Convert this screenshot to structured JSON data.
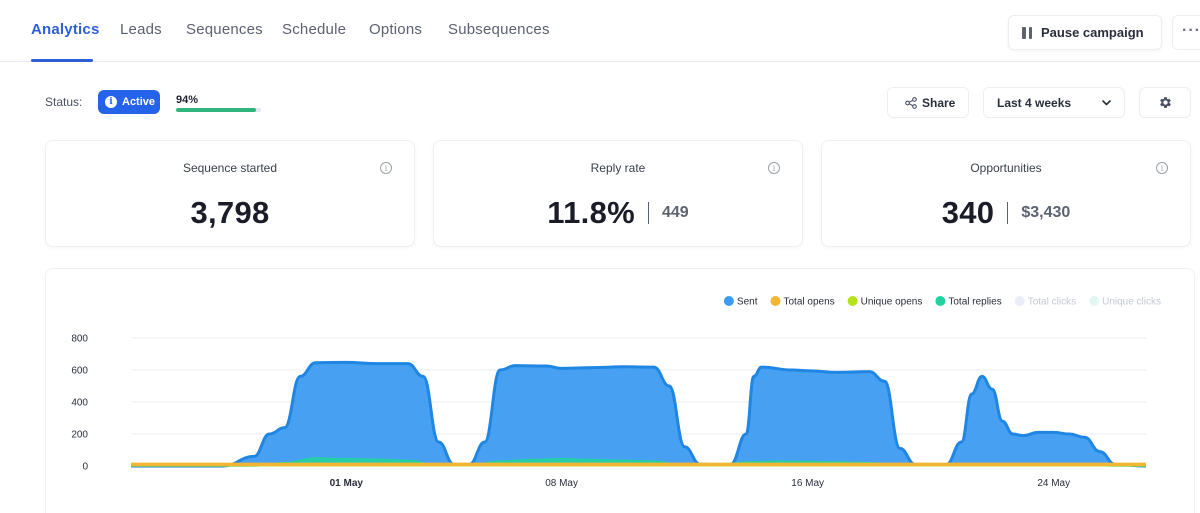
{
  "nav": {
    "tabs": [
      {
        "label": "Analytics"
      },
      {
        "label": "Leads"
      },
      {
        "label": "Sequences"
      },
      {
        "label": "Schedule"
      },
      {
        "label": "Options"
      },
      {
        "label": "Subsequences"
      }
    ],
    "active_tab": "Analytics",
    "pause_label": "Pause campaign",
    "more_label": "···"
  },
  "status": {
    "label": "Status:",
    "badge": "Active",
    "progress_label": "94%",
    "progress_value": 0.94,
    "progress_color": "#30b57c"
  },
  "toolbar": {
    "share_label": "Share",
    "range_value": "Last 4 weeks"
  },
  "cards": [
    {
      "title": "Sequence started",
      "value": "3,798",
      "sub": ""
    },
    {
      "title": "Reply rate",
      "value": "11.8%",
      "sub": "449"
    },
    {
      "title": "Opportunities",
      "value": "340",
      "sub": "$3,430"
    }
  ],
  "icons": {
    "pause": "pause-icon",
    "more": "ellipsis-icon",
    "info": "info-icon",
    "share": "share-icon",
    "chevron": "chevron-down-icon",
    "gear": "gear-icon"
  },
  "colors": {
    "accent": "#2c5fd9",
    "badge": "#2563eb"
  },
  "chart_data": {
    "type": "area",
    "title": "",
    "xlabel": "",
    "ylabel": "",
    "ylim": [
      0,
      800
    ],
    "yticks": [
      0,
      200,
      400,
      600,
      800
    ],
    "xlim": [
      "2025-04-24",
      "2025-05-27"
    ],
    "xticks": [
      {
        "label": "01 May",
        "date": "2025-05-01",
        "bold": true
      },
      {
        "label": "08 May",
        "date": "2025-05-08",
        "bold": false
      },
      {
        "label": "16 May",
        "date": "2025-05-16",
        "bold": false
      },
      {
        "label": "24 May",
        "date": "2025-05-24",
        "bold": false
      }
    ],
    "grid": true,
    "legend_position": "top-right",
    "series": [
      {
        "name": "Sent",
        "color": "#3d9bf0",
        "visible": true,
        "points": [
          [
            "2025-04-24",
            0
          ],
          [
            "2025-04-27",
            0
          ],
          [
            "2025-04-28",
            60
          ],
          [
            "2025-04-28 12:00",
            200
          ],
          [
            "2025-04-29",
            240
          ],
          [
            "2025-04-29 12:00",
            560
          ],
          [
            "2025-04-30",
            645
          ],
          [
            "2025-05-01",
            648
          ],
          [
            "2025-05-02",
            640
          ],
          [
            "2025-05-03",
            640
          ],
          [
            "2025-05-03 12:00",
            560
          ],
          [
            "2025-05-04",
            150
          ],
          [
            "2025-05-04 12:00",
            10
          ],
          [
            "2025-05-05",
            10
          ],
          [
            "2025-05-05 12:00",
            150
          ],
          [
            "2025-05-06",
            600
          ],
          [
            "2025-05-06 12:00",
            627
          ],
          [
            "2025-05-07 12:00",
            625
          ],
          [
            "2025-05-08",
            610
          ],
          [
            "2025-05-09",
            615
          ],
          [
            "2025-05-10",
            620
          ],
          [
            "2025-05-11",
            618
          ],
          [
            "2025-05-11 12:00",
            500
          ],
          [
            "2025-05-12",
            120
          ],
          [
            "2025-05-12 12:00",
            12
          ],
          [
            "2025-05-13",
            8
          ],
          [
            "2025-05-13 12:00",
            10
          ],
          [
            "2025-05-14",
            200
          ],
          [
            "2025-05-14 06:00",
            560
          ],
          [
            "2025-05-14 12:00",
            618
          ],
          [
            "2025-05-15 12:00",
            600
          ],
          [
            "2025-05-16",
            595
          ],
          [
            "2025-05-17",
            585
          ],
          [
            "2025-05-18",
            590
          ],
          [
            "2025-05-18 12:00",
            530
          ],
          [
            "2025-05-19",
            110
          ],
          [
            "2025-05-19 12:00",
            10
          ],
          [
            "2025-05-20 12:00",
            8
          ],
          [
            "2025-05-21",
            150
          ],
          [
            "2025-05-21 08:00",
            450
          ],
          [
            "2025-05-21 16:00",
            560
          ],
          [
            "2025-05-22",
            480
          ],
          [
            "2025-05-22 08:00",
            280
          ],
          [
            "2025-05-22 16:00",
            200
          ],
          [
            "2025-05-23",
            190
          ],
          [
            "2025-05-23 12:00",
            210
          ],
          [
            "2025-05-24",
            210
          ],
          [
            "2025-05-24 12:00",
            200
          ],
          [
            "2025-05-25",
            180
          ],
          [
            "2025-05-25 12:00",
            90
          ],
          [
            "2025-05-26",
            10
          ],
          [
            "2025-05-27",
            0
          ]
        ]
      },
      {
        "name": "Total opens",
        "color": "#f3b634",
        "visible": true,
        "points": [
          [
            "2025-04-24",
            10
          ],
          [
            "2025-05-27",
            10
          ]
        ]
      },
      {
        "name": "Unique opens",
        "color": "#b4e31a",
        "visible": true,
        "points": [
          [
            "2025-04-24",
            8
          ],
          [
            "2025-05-27",
            8
          ]
        ]
      },
      {
        "name": "Total replies",
        "color": "#22d3a0",
        "visible": true,
        "points": [
          [
            "2025-04-24",
            0
          ],
          [
            "2025-04-28",
            0
          ],
          [
            "2025-04-29",
            20
          ],
          [
            "2025-04-30",
            50
          ],
          [
            "2025-05-01",
            45
          ],
          [
            "2025-05-02",
            42
          ],
          [
            "2025-05-03",
            35
          ],
          [
            "2025-05-04",
            5
          ],
          [
            "2025-05-05",
            5
          ],
          [
            "2025-05-06",
            30
          ],
          [
            "2025-05-07",
            40
          ],
          [
            "2025-05-08",
            45
          ],
          [
            "2025-05-09",
            40
          ],
          [
            "2025-05-10",
            35
          ],
          [
            "2025-05-11",
            30
          ],
          [
            "2025-05-12",
            5
          ],
          [
            "2025-05-13",
            3
          ],
          [
            "2025-05-14",
            25
          ],
          [
            "2025-05-15",
            30
          ],
          [
            "2025-05-16",
            28
          ],
          [
            "2025-05-17",
            25
          ],
          [
            "2025-05-18",
            20
          ],
          [
            "2025-05-19",
            3
          ],
          [
            "2025-05-21",
            10
          ],
          [
            "2025-05-22",
            8
          ],
          [
            "2025-05-23",
            8
          ],
          [
            "2025-05-25",
            5
          ],
          [
            "2025-05-26",
            0
          ],
          [
            "2025-05-27",
            0
          ]
        ]
      },
      {
        "name": "Total clicks",
        "color": "#d8ddf0",
        "visible": false,
        "points": []
      },
      {
        "name": "Unique clicks",
        "color": "#c8efe6",
        "visible": false,
        "points": []
      }
    ]
  }
}
